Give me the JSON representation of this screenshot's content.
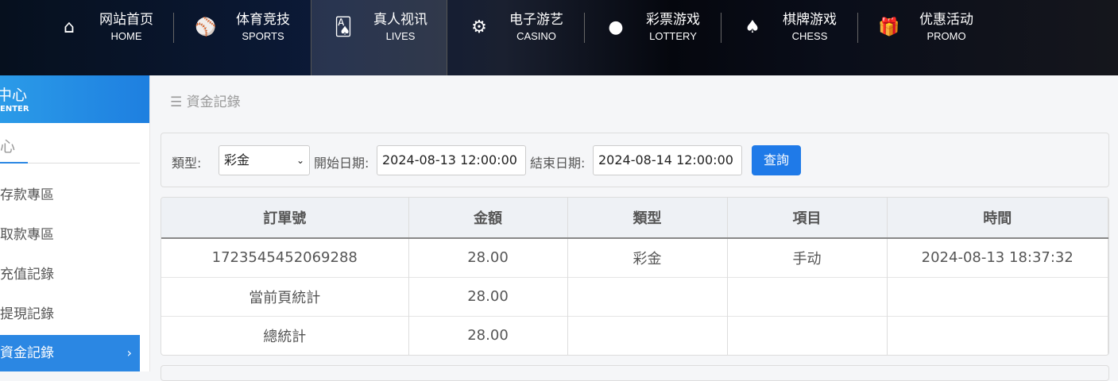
{
  "nav": [
    {
      "cn": "网站首页",
      "en": "HOME",
      "icon": "home-icon",
      "glyph": "⌂"
    },
    {
      "cn": "体育竞技",
      "en": "SPORTS",
      "icon": "ball-icon",
      "glyph": "⚾"
    },
    {
      "cn": "真人视讯",
      "en": "LIVES",
      "icon": "cards-icon",
      "glyph": "🂡"
    },
    {
      "cn": "电子游艺",
      "en": "CASINO",
      "icon": "roulette-icon",
      "glyph": "⚙"
    },
    {
      "cn": "彩票游戏",
      "en": "LOTTERY",
      "icon": "balls-icon",
      "glyph": "●"
    },
    {
      "cn": "棋牌游戏",
      "en": "CHESS",
      "icon": "spade-icon",
      "glyph": "♠"
    },
    {
      "cn": "优惠活动",
      "en": "PROMO",
      "icon": "gift-icon",
      "glyph": "🎁"
    }
  ],
  "sidebar": {
    "title": "中心",
    "subtitle": "ENTER",
    "tab": "心",
    "items": [
      "存款專區",
      "取款專區",
      "充值記錄",
      "提現記錄",
      "資金記錄"
    ]
  },
  "breadcrumb": "資金記錄",
  "filter": {
    "type_label": "類型:",
    "type_value": "彩金",
    "start_label": "開始日期:",
    "start_value": "2024-08-13 12:00:00",
    "end_label": "結束日期:",
    "end_value": "2024-08-14 12:00:00",
    "query": "查詢"
  },
  "table": {
    "headers": [
      "訂單號",
      "金額",
      "類型",
      "項目",
      "時間"
    ],
    "rows": [
      [
        "1723545452069288",
        "28.00",
        "彩金",
        "手动",
        "2024-08-13 18:37:32"
      ],
      [
        "當前頁統計",
        "28.00",
        "",
        "",
        ""
      ],
      [
        "總統計",
        "28.00",
        "",
        "",
        ""
      ]
    ]
  }
}
